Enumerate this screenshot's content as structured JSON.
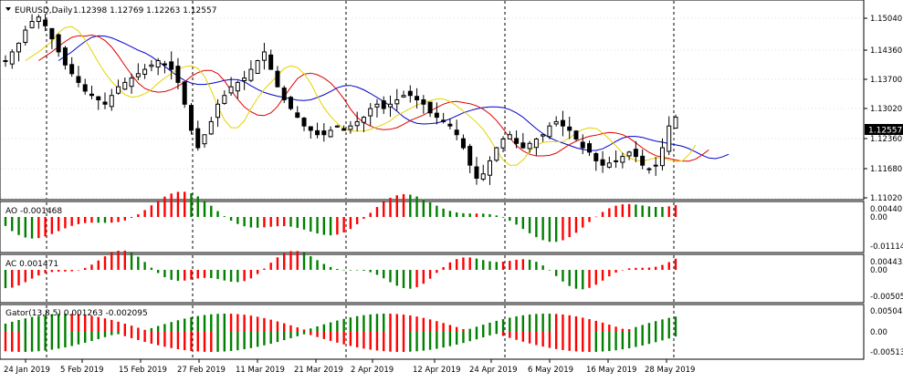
{
  "chart_data": [
    {
      "type": "candlestick",
      "title": "EURUSD,Daily",
      "ohlc": [
        "1.12398",
        "1.12769",
        "1.12263",
        "1.12557"
      ],
      "current_price": "1.12557",
      "ylim": [
        1.1085,
        1.1535
      ],
      "yticks": [
        "1.15040",
        "1.14360",
        "1.13700",
        "1.13020",
        "1.12360",
        "1.11680",
        "1.11020"
      ],
      "xlabels": [
        "24 Jan 2019",
        "5 Feb 2019",
        "15 Feb 2019",
        "27 Feb 2019",
        "11 Mar 2019",
        "21 Mar 2019",
        "2 Apr 2019",
        "12 Apr 2019",
        "24 Apr 2019",
        "6 May 2019",
        "16 May 2019",
        "28 May 2019"
      ],
      "period_separators_x_index": [
        6,
        26,
        47,
        69,
        91,
        111,
        130,
        152,
        174
      ]
    },
    {
      "type": "bar",
      "title": "AO -0.001468",
      "yticks": [
        "0.004407",
        "0.00",
        "-0.011147"
      ]
    },
    {
      "type": "bar",
      "title": "AC 0.001471",
      "yticks": [
        "0.004435",
        "0.00",
        "-0.005055"
      ]
    },
    {
      "type": "bar",
      "title": "Gator(13,8,5) 0.001263 -0.002095",
      "yticks": [
        "0.005043",
        "0.00",
        "-0.005134"
      ]
    }
  ],
  "colors": {
    "bull": "#000000",
    "bear": "#000000",
    "jaw": "#0000cc",
    "teeth": "#dd0000",
    "lips": "#e6d200",
    "up": "#008000",
    "down": "#ff0000",
    "price_label_bg": "#000000"
  }
}
